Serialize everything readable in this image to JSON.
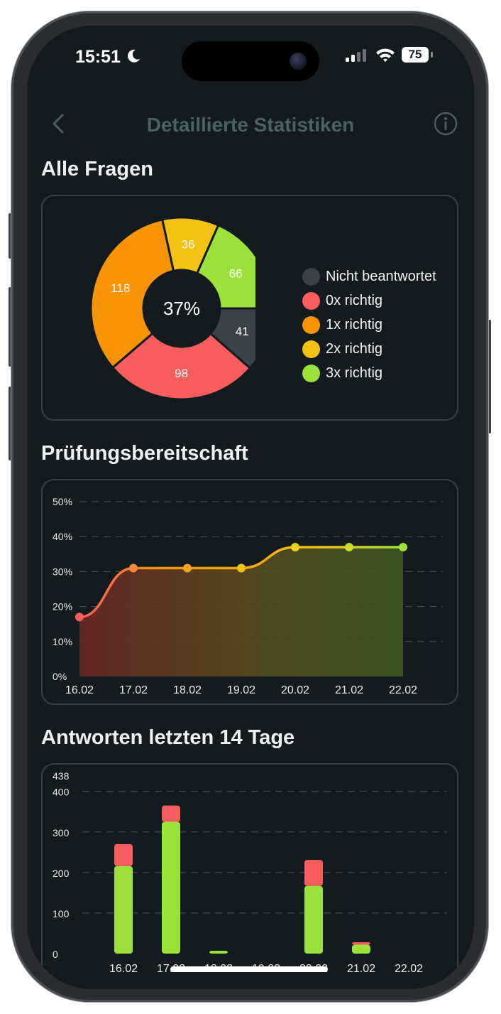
{
  "status_bar": {
    "time": "15:51",
    "battery": "75"
  },
  "nav": {
    "title": "Detaillierte Statistiken"
  },
  "sections": {
    "all_questions": "Alle Fragen",
    "readiness": "Prüfungsbereitschaft",
    "answers": "Antworten letzten 14 Tage"
  },
  "colors": {
    "unanswered": "#374349",
    "zero": "#f85d5d",
    "one": "#f99407",
    "two": "#f3c212",
    "three": "#9be23a"
  },
  "chart_data": [
    {
      "type": "pie",
      "center_label": "37%",
      "slices": [
        {
          "label": "Nicht beantwortet",
          "value": 41
        },
        {
          "label": "0x richtig",
          "value": 98
        },
        {
          "label": "1x richtig",
          "value": 118
        },
        {
          "label": "2x richtig",
          "value": 36
        },
        {
          "label": "3x richtig",
          "value": 66
        }
      ]
    },
    {
      "type": "area",
      "x": [
        "16.02",
        "17.02",
        "18.02",
        "19.02",
        "20.02",
        "21.02",
        "22.02"
      ],
      "values": [
        17,
        31,
        31,
        31,
        37,
        37,
        37
      ],
      "ylim": [
        0,
        50
      ],
      "yticks": [
        "0%",
        "10%",
        "20%",
        "30%",
        "40%",
        "50%"
      ],
      "grid": true
    },
    {
      "type": "bar",
      "stacked": true,
      "categories": [
        "16.02",
        "17.02",
        "18.02",
        "19.02",
        "20.02",
        "21.02",
        "22.02"
      ],
      "series": [
        {
          "values": [
            216,
            325,
            7,
            0,
            167,
            22,
            0
          ]
        },
        {
          "values": [
            54,
            40,
            0,
            0,
            64,
            6,
            0
          ]
        }
      ],
      "yticks": [
        "0",
        "100",
        "200",
        "300",
        "400"
      ],
      "ymax_label": "438",
      "ylim": [
        0,
        438
      ],
      "grid": true
    }
  ]
}
